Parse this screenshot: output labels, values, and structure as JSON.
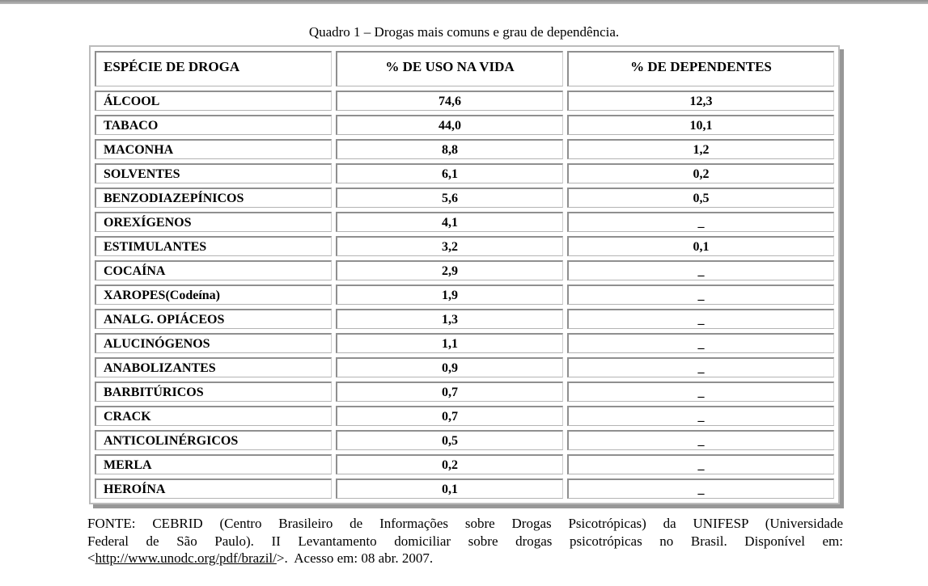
{
  "page": {
    "title": "Quadro 1 – Drogas mais comuns e grau de dependência."
  },
  "table": {
    "headers": [
      "ESPÉCIE DE DROGA",
      "% DE USO NA VIDA",
      "% DE DEPENDENTES"
    ],
    "rows": [
      {
        "drug": "ÁLCOOL",
        "use": "74,6",
        "dep": "12,3"
      },
      {
        "drug": "TABACO",
        "use": "44,0",
        "dep": "10,1"
      },
      {
        "drug": "MACONHA",
        "use": "8,8",
        "dep": "1,2"
      },
      {
        "drug": "SOLVENTES",
        "use": "6,1",
        "dep": "0,2"
      },
      {
        "drug": "BENZODIAZEPÍNICOS",
        "use": "5,6",
        "dep": "0,5"
      },
      {
        "drug": "OREXÍGENOS",
        "use": "4,1",
        "dep": "_"
      },
      {
        "drug": "ESTIMULANTES",
        "use": "3,2",
        "dep": "0,1"
      },
      {
        "drug": "COCAÍNA",
        "use": "2,9",
        "dep": "_"
      },
      {
        "drug": "XAROPES(Codeína)",
        "use": "1,9",
        "dep": "_"
      },
      {
        "drug": "ANALG. OPIÁCEOS",
        "use": "1,3",
        "dep": "_"
      },
      {
        "drug": "ALUCINÓGENOS",
        "use": "1,1",
        "dep": "_"
      },
      {
        "drug": "ANABOLIZANTES",
        "use": "0,9",
        "dep": "_"
      },
      {
        "drug": "BARBITÚRICOS",
        "use": "0,7",
        "dep": "_"
      },
      {
        "drug": "CRACK",
        "use": "0,7",
        "dep": "_"
      },
      {
        "drug": "ANTICOLINÉRGICOS",
        "use": "0,5",
        "dep": "_"
      },
      {
        "drug": "MERLA",
        "use": "0,2",
        "dep": "_"
      },
      {
        "drug": "HEROÍNA",
        "use": "0,1",
        "dep": "_"
      }
    ],
    "empty_marker": "_"
  },
  "source": {
    "line1": "FONTE: CEBRID (Centro Brasileiro de Informações sobre Drogas Psicotrópicas) da UNIFESP (Universidade",
    "line2": "Federal de São Paulo). II Levantamento domiciliar sobre drogas psicotrópicas no Brasil. Disponível em:",
    "line3_prefix": "<",
    "url": "http://www.unodc.org/pdf/brazil/",
    "line3_suffix": ">.  Acesso em: 08 abr. 2007."
  },
  "colors": {
    "page_background": "#ffffff",
    "text": "#000000",
    "table_frame_border": "#bcbcbc",
    "cell_border_dark": "#8f8f8f",
    "cell_border_light": "#cccccc",
    "table_shadow": "#979797",
    "top_bar": "#9e9e9e"
  }
}
